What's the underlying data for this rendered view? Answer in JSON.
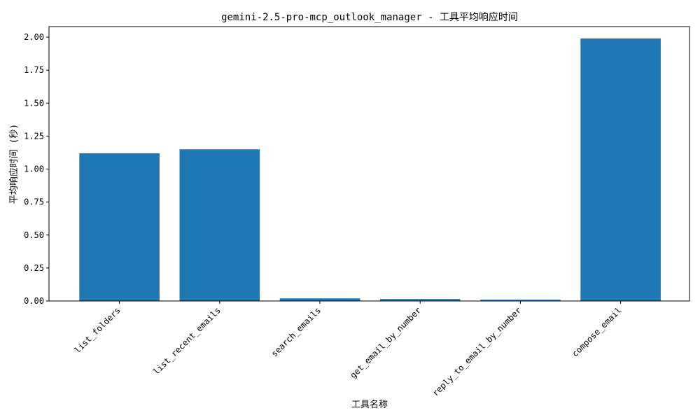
{
  "chart_data": {
    "type": "bar",
    "title": "gemini-2.5-pro-mcp_outlook_manager - 工具平均响应时间",
    "xlabel": "工具名称",
    "ylabel": "平均响应时间 (秒)",
    "categories": [
      "list_folders",
      "list_recent_emails",
      "search_emails",
      "get_email_by_number",
      "reply_to_email_by_number",
      "compose_email"
    ],
    "values": [
      1.12,
      1.15,
      0.02,
      0.015,
      0.01,
      1.99
    ],
    "ylim": [
      0,
      2.08
    ],
    "yticks": [
      "0.00",
      "0.25",
      "0.50",
      "0.75",
      "1.00",
      "1.25",
      "1.50",
      "1.75",
      "2.00"
    ],
    "bar_color": "#1f77b4",
    "grid": false,
    "legend": "none"
  }
}
